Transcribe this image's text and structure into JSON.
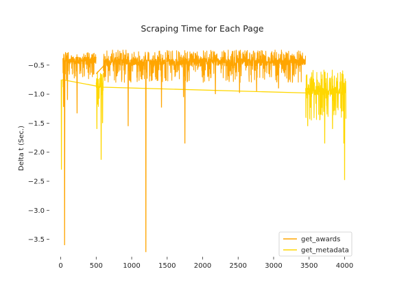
{
  "chart_data": {
    "type": "line",
    "title": "Scraping Time for Each Page",
    "xlabel": "",
    "ylabel": "Delta t (Sec.)",
    "xlim": [
      -160,
      4150
    ],
    "ylim": [
      -3.8,
      -0.1
    ],
    "x_ticks": [
      0,
      500,
      1000,
      1500,
      2000,
      2500,
      3000,
      3500,
      4000
    ],
    "y_ticks": [
      -3.5,
      -3.0,
      -2.5,
      -2.0,
      -1.5,
      -1.0,
      -0.5
    ],
    "y_tick_labels": [
      "−3.5",
      "−3.0",
      "−2.5",
      "−2.0",
      "−1.5",
      "−1.0",
      "−0.5"
    ],
    "grid": false,
    "legend_position": "lower-right",
    "series": [
      {
        "name": "get_awards",
        "color": "#ffa500",
        "segments": [
          {
            "x_start": 30,
            "x_end": 500,
            "baseline": -0.42,
            "band_low": -0.75,
            "band_high": -0.28
          },
          {
            "x_start": 600,
            "x_end": 3450,
            "baseline": -0.45,
            "band_low": -0.8,
            "band_high": -0.24
          }
        ],
        "connectors": [
          [
            [
              500,
              -0.65
            ],
            [
              615,
              -0.5
            ]
          ]
        ],
        "spikes": [
          [
            55,
            -3.6
          ],
          [
            40,
            -1.22
          ],
          [
            95,
            -1.1
          ],
          [
            230,
            -1.33
          ],
          [
            950,
            -1.55
          ],
          [
            1200,
            -3.72
          ],
          [
            1420,
            -1.23
          ],
          [
            1750,
            -1.85
          ],
          [
            1730,
            -1.05
          ],
          [
            2180,
            -1.0
          ],
          [
            2520,
            -0.98
          ],
          [
            2760,
            -0.95
          ],
          [
            3070,
            -0.9
          ]
        ]
      },
      {
        "name": "get_metadata",
        "color": "#ffd700",
        "trend": [
          [
            20,
            -0.75
          ],
          [
            500,
            -0.86
          ],
          [
            600,
            -0.88
          ],
          [
            3450,
            -0.98
          ]
        ],
        "segments": [
          {
            "x_start": 500,
            "x_end": 600,
            "baseline": -0.85,
            "band_low": -1.25,
            "band_high": -0.6
          },
          {
            "x_start": 3450,
            "x_end": 4020,
            "baseline": -0.95,
            "band_low": -1.45,
            "band_high": -0.58
          }
        ],
        "spikes": [
          [
            10,
            -2.3
          ],
          [
            35,
            -0.88
          ],
          [
            510,
            -1.6
          ],
          [
            570,
            -2.13
          ],
          [
            590,
            -1.5
          ],
          [
            3480,
            -1.55
          ],
          [
            3720,
            -1.85
          ],
          [
            3830,
            -1.6
          ],
          [
            4000,
            -2.48
          ],
          [
            3990,
            -1.85
          ]
        ]
      }
    ]
  }
}
